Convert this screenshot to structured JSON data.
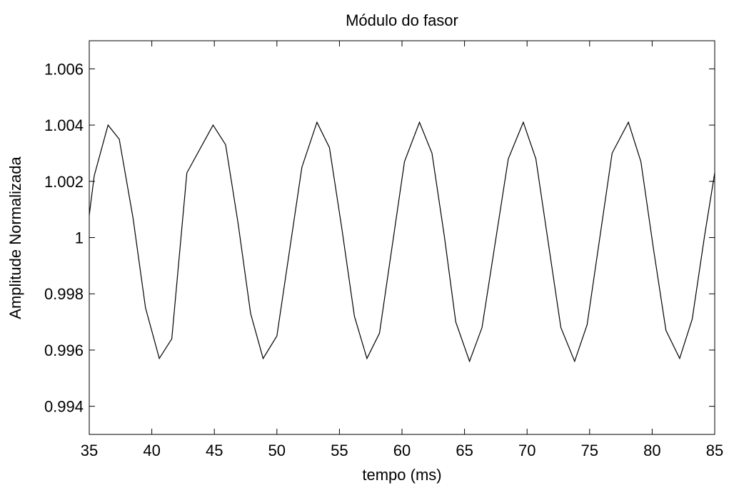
{
  "chart_data": {
    "type": "line",
    "title": "Módulo do fasor",
    "xlabel": "tempo (ms)",
    "ylabel": "Amplitude Normalizada",
    "xlim": [
      35,
      85
    ],
    "ylim": [
      0.993,
      1.007
    ],
    "xticks": [
      35,
      40,
      45,
      50,
      55,
      60,
      65,
      70,
      75,
      80,
      85
    ],
    "xtick_labels": [
      "35",
      "40",
      "45",
      "50",
      "55",
      "60",
      "65",
      "70",
      "75",
      "80",
      "85"
    ],
    "yticks": [
      0.994,
      0.996,
      0.998,
      1.0,
      1.002,
      1.004,
      1.006
    ],
    "ytick_labels": [
      "0.994",
      "0.996",
      "0.998",
      "1",
      "1.002",
      "1.004",
      "1.006"
    ],
    "grid": false,
    "line_color": "#000000",
    "series": [
      {
        "x": [
          35.0,
          35.4,
          36.5,
          37.4,
          38.5,
          39.5,
          40.6,
          41.6,
          42.8,
          44.9,
          45.9,
          46.9,
          47.9,
          48.9,
          50.0,
          52.0,
          53.2,
          54.2,
          55.2,
          56.2,
          57.2,
          58.2,
          60.2,
          61.4,
          62.4,
          63.4,
          64.3,
          65.4,
          66.4,
          68.5,
          69.7,
          70.7,
          71.7,
          72.7,
          73.8,
          74.8,
          76.8,
          78.1,
          79.1,
          80.1,
          81.1,
          82.2,
          83.2,
          84.2,
          85.0
        ],
        "y": [
          1.0008,
          1.0022,
          1.004,
          1.0035,
          1.0007,
          0.9975,
          0.9957,
          0.9964,
          1.0023,
          1.004,
          1.0033,
          1.0005,
          0.9973,
          0.9957,
          0.9965,
          1.0025,
          1.0041,
          1.0032,
          1.0003,
          0.9972,
          0.9957,
          0.9966,
          1.0027,
          1.0041,
          1.003,
          1.0,
          0.997,
          0.9956,
          0.9968,
          1.0028,
          1.0041,
          1.0028,
          0.9998,
          0.9968,
          0.9956,
          0.9969,
          1.003,
          1.0041,
          1.0027,
          0.9996,
          0.9967,
          0.9957,
          0.9971,
          1.0001,
          1.0023
        ]
      }
    ]
  }
}
